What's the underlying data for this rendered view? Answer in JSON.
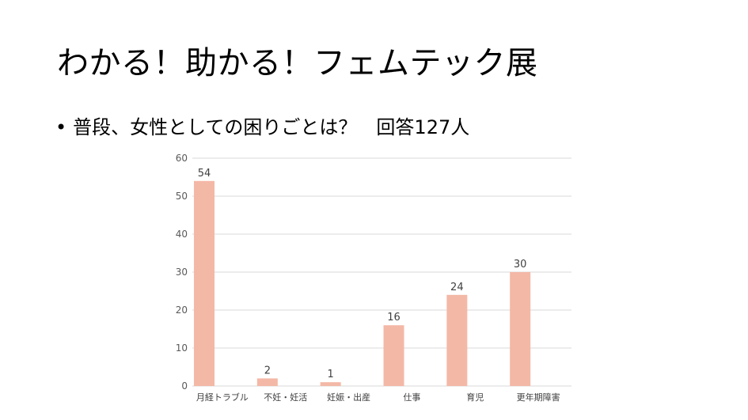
{
  "slide": {
    "title": "わかる！助かる！フェムテック展",
    "bullet_marker": "•",
    "bullet_text": "普段、女性としての困りごとは？　回答127人"
  },
  "colors": {
    "bar": "#f4b8a6",
    "grid": "#d9d9d9",
    "tick_text": "#595959",
    "label_text": "#404040"
  },
  "chart_data": {
    "type": "bar",
    "categories": [
      "月経トラブル",
      "不妊・妊活",
      "妊娠・出産",
      "仕事",
      "育児",
      "更年期障害"
    ],
    "values": [
      54,
      2,
      1,
      16,
      24,
      30
    ],
    "ylim": [
      0,
      60
    ],
    "yticks": [
      0,
      10,
      20,
      30,
      40,
      50,
      60
    ],
    "grid": true,
    "data_labels": true
  }
}
